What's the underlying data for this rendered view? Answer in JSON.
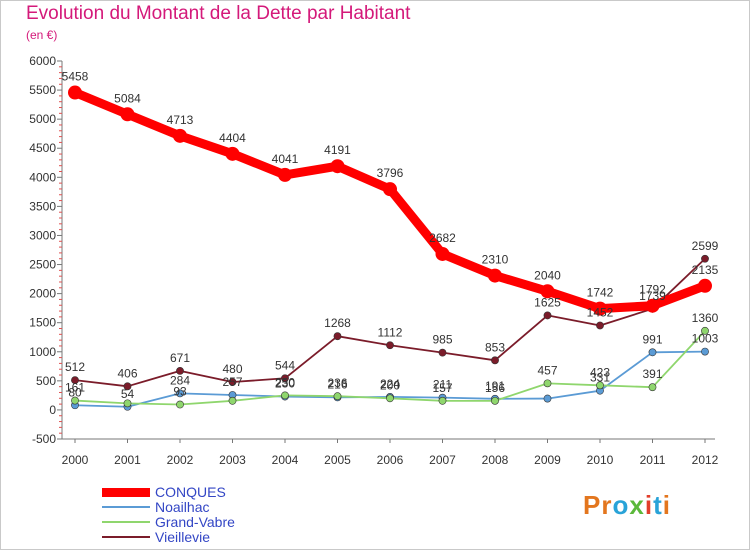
{
  "title": "Evolution du Montant de la Dette par Habitant",
  "subtitle": "(en €)",
  "logo": {
    "parts": [
      "P",
      "r",
      "o",
      "x",
      "i",
      "t",
      "i"
    ],
    "colors": [
      "#e3761e",
      "#e3761e",
      "#29a3d8",
      "#5bb83a",
      "#e23e2b",
      "#29a3d8",
      "#e3761e"
    ]
  },
  "chart_data": {
    "type": "line",
    "x": [
      "2000",
      "2001",
      "2002",
      "2003",
      "2004",
      "2005",
      "2006",
      "2007",
      "2008",
      "2009",
      "2010",
      "2011",
      "2012"
    ],
    "ylim": [
      -500,
      6000
    ],
    "yticks": [
      "6000",
      "5500",
      "5000",
      "4500",
      "4000",
      "3500",
      "3000",
      "2500",
      "2000",
      "1500",
      "1000",
      "500",
      "0",
      "-500"
    ],
    "grid": false,
    "legend": "bottom-left",
    "series": [
      {
        "name": "CONQUES",
        "color": "#ff0000",
        "values": [
          5458,
          5084,
          4713,
          4404,
          4041,
          4191,
          3796,
          2682,
          2310,
          2040,
          1742,
          1792,
          2135
        ],
        "labels": [
          "5458",
          "5084",
          "4713",
          "4404",
          "4041",
          "4191",
          "3796",
          "2682",
          "2310",
          "2040",
          "1742",
          "1792",
          "2135"
        ]
      },
      {
        "name": "Noailhac",
        "color": "#5b9bd5",
        "values": [
          80,
          54,
          284,
          257,
          230,
          216,
          224,
          211,
          191,
          195,
          331,
          991,
          1003
        ],
        "labels": [
          "80",
          "54",
          "284",
          "257",
          "230",
          "216",
          "224",
          "211",
          "191",
          "",
          "331",
          "991",
          "1003"
        ]
      },
      {
        "name": "Grand-Vabre",
        "color": "#8fd66d",
        "values": [
          161,
          113,
          93,
          157,
          250,
          236,
          200,
          157,
          156,
          457,
          423,
          391,
          1360
        ],
        "labels": [
          "161",
          "",
          "93",
          "",
          "250",
          "236",
          "200",
          "157",
          "156",
          "457",
          "423",
          "391",
          "1360"
        ]
      },
      {
        "name": "Vieillevie",
        "color": "#7b1c2a",
        "values": [
          512,
          406,
          671,
          480,
          544,
          1268,
          1112,
          985,
          853,
          1625,
          1452,
          1739,
          2599
        ],
        "labels": [
          "512",
          "406",
          "671",
          "480",
          "544",
          "1268",
          "1112",
          "985",
          "853",
          "1625",
          "1452",
          "1739",
          "2599"
        ]
      }
    ]
  }
}
